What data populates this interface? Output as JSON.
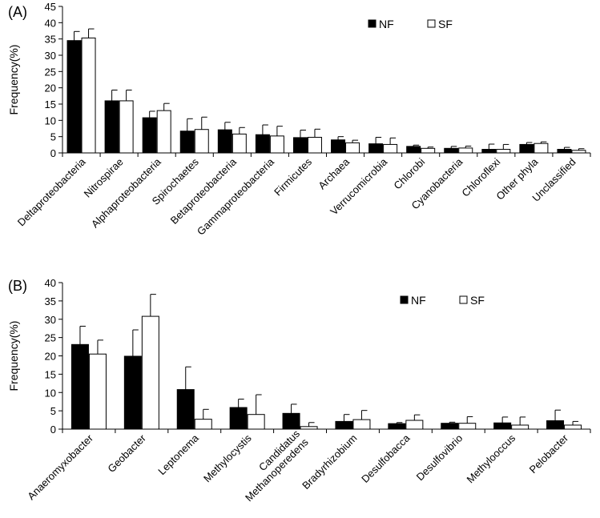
{
  "chart_data": [
    {
      "type": "bar",
      "panel_label": "(A)",
      "ylabel": "Frequency(%)",
      "ylim": [
        0,
        45
      ],
      "yticks": [
        0,
        5,
        10,
        15,
        20,
        25,
        30,
        35,
        40,
        45
      ],
      "grid": false,
      "legend_position": "top-right",
      "categories": [
        {
          "label": "Deltaproteobacteria"
        },
        {
          "label": "Nitrospirae"
        },
        {
          "label": "Alphaproteobacteria"
        },
        {
          "label": "Spirochaetes"
        },
        {
          "label": "Betaproteobacteria"
        },
        {
          "label": "Gammaproteobacteria"
        },
        {
          "label": "Firmicutes"
        },
        {
          "label": "Archaea"
        },
        {
          "label": "Verrucomicrobia"
        },
        {
          "label": "Chlorobi"
        },
        {
          "label": "Cyanobacteria"
        },
        {
          "label": "Chloroflexi"
        },
        {
          "label": "Other phyla"
        },
        {
          "label": "Unclassified"
        }
      ],
      "series": [
        {
          "name": "NF",
          "fill": "#000000",
          "values": [
            34.5,
            16,
            10.8,
            6.7,
            7.1,
            5.6,
            4.7,
            4.0,
            2.8,
            2.0,
            1.4,
            1.1,
            2.6,
            1.1
          ],
          "errors": [
            2.8,
            3.3,
            2.0,
            3.8,
            2.3,
            3.0,
            2.3,
            1.0,
            2.0,
            0.4,
            0.6,
            1.6,
            0.6,
            0.6
          ]
        },
        {
          "name": "SF",
          "fill": "#ffffff",
          "values": [
            35.3,
            16,
            13.0,
            7.2,
            5.8,
            5.2,
            4.8,
            3.1,
            2.6,
            1.4,
            1.5,
            1.1,
            2.9,
            0.8
          ],
          "errors": [
            2.8,
            3.3,
            2.2,
            3.8,
            2.0,
            3.0,
            2.5,
            0.8,
            2.0,
            0.4,
            0.6,
            1.5,
            0.5,
            0.5
          ]
        }
      ]
    },
    {
      "type": "bar",
      "panel_label": "(B)",
      "ylabel": "Frequency(%)",
      "ylim": [
        0,
        40
      ],
      "yticks": [
        0,
        5,
        10,
        15,
        20,
        25,
        30,
        35,
        40
      ],
      "grid": false,
      "legend_position": "top-right",
      "categories": [
        {
          "label": "Anaeromyxobacter"
        },
        {
          "label": "Geobacter"
        },
        {
          "label": "Leptonema"
        },
        {
          "label": "Methylocystis"
        },
        {
          "label": "Candidatus",
          "label2": "Methanoperedens"
        },
        {
          "label": "Bradyrhizobium"
        },
        {
          "label": "Desulfobacca"
        },
        {
          "label": "Desulfovibrio"
        },
        {
          "label": "Methylooccus"
        },
        {
          "label": "Pelobacter"
        }
      ],
      "series": [
        {
          "name": "NF",
          "fill": "#000000",
          "values": [
            23.1,
            19.9,
            10.8,
            5.9,
            4.3,
            2.1,
            1.5,
            1.6,
            1.7,
            2.3
          ],
          "errors": [
            5.0,
            7.2,
            6.2,
            2.3,
            2.5,
            1.9,
            0.3,
            0.3,
            1.6,
            2.9
          ]
        },
        {
          "name": "SF",
          "fill": "#ffffff",
          "values": [
            20.5,
            30.8,
            2.7,
            4.0,
            0.7,
            2.6,
            2.4,
            1.6,
            1.1,
            1.1
          ],
          "errors": [
            3.8,
            6.0,
            2.7,
            5.4,
            1.1,
            2.5,
            1.5,
            1.8,
            2.2,
            1.0
          ]
        }
      ]
    }
  ]
}
